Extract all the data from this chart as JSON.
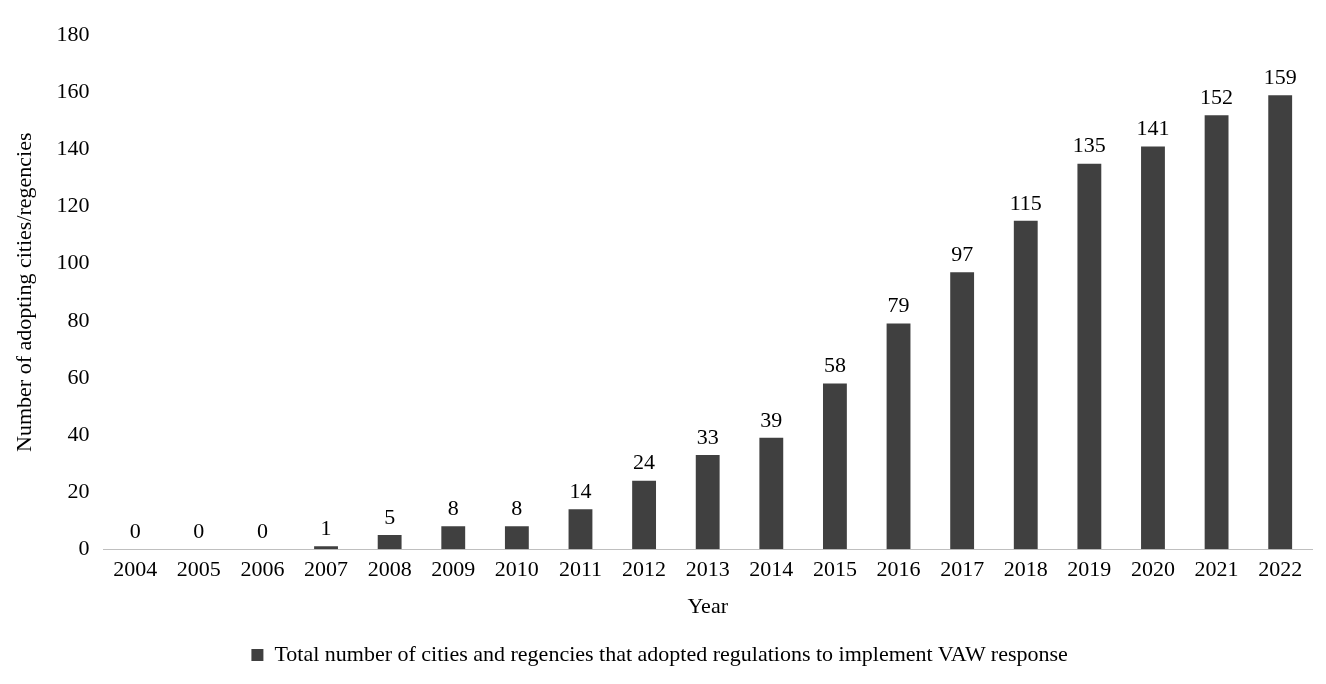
{
  "chart_data": {
    "type": "bar",
    "xlabel": "Year",
    "ylabel": "Number of adopting cities/regencies",
    "categories": [
      "2004",
      "2005",
      "2006",
      "2007",
      "2008",
      "2009",
      "2010",
      "2011",
      "2012",
      "2013",
      "2014",
      "2015",
      "2016",
      "2017",
      "2018",
      "2019",
      "2020",
      "2021",
      "2022"
    ],
    "series": [
      {
        "name": "Total number of cities and regencies that adopted regulations to implement VAW response",
        "color": "#404040",
        "values": [
          0,
          0,
          0,
          1,
          5,
          8,
          8,
          14,
          24,
          33,
          39,
          58,
          79,
          97,
          115,
          135,
          141,
          152,
          159
        ]
      }
    ],
    "ylim": [
      0,
      180
    ],
    "yticks": [
      0,
      20,
      40,
      60,
      80,
      100,
      120,
      140,
      160,
      180
    ],
    "grid": false,
    "legend": "bottom",
    "data_labels": true
  }
}
